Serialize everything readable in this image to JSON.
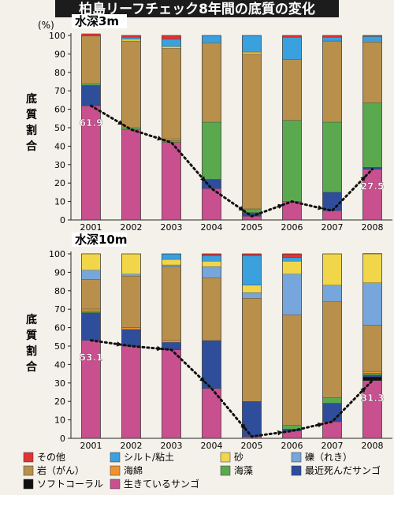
{
  "title": "柏島リーフチェック8年間の底質の変化",
  "y_axis_unit": "(%)",
  "ylabel": "底質割合",
  "x_suffix": "年",
  "colors": {
    "その他": "#e03434",
    "シルト/粘土": "#3aa0de",
    "砂": "#f2d64a",
    "礫（れき）": "#76a6dc",
    "岩（がん）": "#b8904c",
    "海綿": "#f09230",
    "海藻": "#5aa94e",
    "最近死んだサンゴ": "#2e4e9c",
    "ソフトコーラル": "#101010",
    "生きているサンゴ": "#c8508e"
  },
  "legend": [
    "その他",
    "シルト/粘土",
    "砂",
    "礫（れき）",
    "岩（がん）",
    "海綿",
    "海藻",
    "最近死んだサンゴ",
    "ソフトコーラル",
    "生きているサンゴ"
  ],
  "chart_data": [
    {
      "type": "bar",
      "stacked": true,
      "label": "水深3m",
      "categories": [
        "2001",
        "2002",
        "2003",
        "2004",
        "2005",
        "2006",
        "2007",
        "2008"
      ],
      "ylim": [
        0,
        100
      ],
      "yticks": [
        0,
        10,
        20,
        30,
        40,
        50,
        60,
        70,
        80,
        90,
        100
      ],
      "series": [
        {
          "name": "生きているサンゴ",
          "values": [
            61.9,
            49,
            42,
            17,
            2,
            10,
            5,
            27.5
          ]
        },
        {
          "name": "ソフトコーラル",
          "values": [
            0,
            0,
            0,
            0,
            0,
            0,
            0,
            0
          ]
        },
        {
          "name": "最近死んだサンゴ",
          "values": [
            11,
            0,
            0,
            5,
            2,
            0,
            10,
            1
          ]
        },
        {
          "name": "海藻",
          "values": [
            1,
            1,
            1,
            31,
            2,
            44,
            38,
            35
          ]
        },
        {
          "name": "海綿",
          "values": [
            0,
            0,
            1,
            0,
            0,
            0,
            0,
            0
          ]
        },
        {
          "name": "岩（がん）",
          "values": [
            26,
            47,
            49,
            43,
            84,
            33,
            44,
            33
          ]
        },
        {
          "name": "礫（れき）",
          "values": [
            0,
            0,
            0,
            0,
            0,
            0,
            0,
            0
          ]
        },
        {
          "name": "砂",
          "values": [
            0,
            1,
            1,
            0,
            1,
            0,
            0,
            0
          ]
        },
        {
          "name": "シルト/粘土",
          "values": [
            0,
            1,
            4,
            4,
            9,
            12,
            2,
            3
          ]
        },
        {
          "name": "その他",
          "values": [
            1,
            1,
            2,
            0,
            0,
            1,
            1,
            0.5
          ]
        }
      ],
      "annotations": [
        {
          "category": "2001",
          "text": "61.9",
          "value": 61.9
        },
        {
          "category": "2008",
          "text": "27.5",
          "value": 27.5
        }
      ]
    },
    {
      "type": "bar",
      "stacked": true,
      "label": "水深10m",
      "categories": [
        "2001",
        "2002",
        "2003",
        "2004",
        "2005",
        "2006",
        "2007",
        "2008"
      ],
      "ylim": [
        0,
        100
      ],
      "yticks": [
        0,
        10,
        20,
        30,
        40,
        50,
        60,
        70,
        80,
        90,
        100
      ],
      "series": [
        {
          "name": "生きているサンゴ",
          "values": [
            53.1,
            50,
            48,
            27,
            1,
            4,
            9,
            31.3
          ]
        },
        {
          "name": "ソフトコーラル",
          "values": [
            0,
            0,
            0,
            0,
            0,
            0,
            0,
            2
          ]
        },
        {
          "name": "最近死んだサンゴ",
          "values": [
            15,
            9,
            4,
            26,
            19,
            1,
            10,
            1
          ]
        },
        {
          "name": "海藻",
          "values": [
            1,
            0,
            0,
            0,
            0,
            2,
            3,
            1
          ]
        },
        {
          "name": "海綿",
          "values": [
            1,
            1,
            1,
            0,
            0,
            0,
            0,
            1
          ]
        },
        {
          "name": "岩（がん）",
          "values": [
            16,
            28,
            40,
            34,
            56,
            60,
            52,
            25
          ]
        },
        {
          "name": "礫（れき）",
          "values": [
            5,
            1,
            1,
            6,
            3,
            22,
            9,
            23
          ]
        },
        {
          "name": "砂",
          "values": [
            9,
            11,
            3,
            3,
            4,
            7,
            17,
            16
          ]
        },
        {
          "name": "シルト/粘土",
          "values": [
            0,
            0,
            3,
            3,
            16,
            2,
            0,
            0
          ]
        },
        {
          "name": "その他",
          "values": [
            0,
            0,
            0,
            1,
            1,
            2,
            0,
            0
          ]
        }
      ],
      "annotations": [
        {
          "category": "2001",
          "text": "53.1",
          "value": 53.1
        },
        {
          "category": "2008",
          "text": "31.3",
          "value": 31.3
        }
      ]
    }
  ]
}
